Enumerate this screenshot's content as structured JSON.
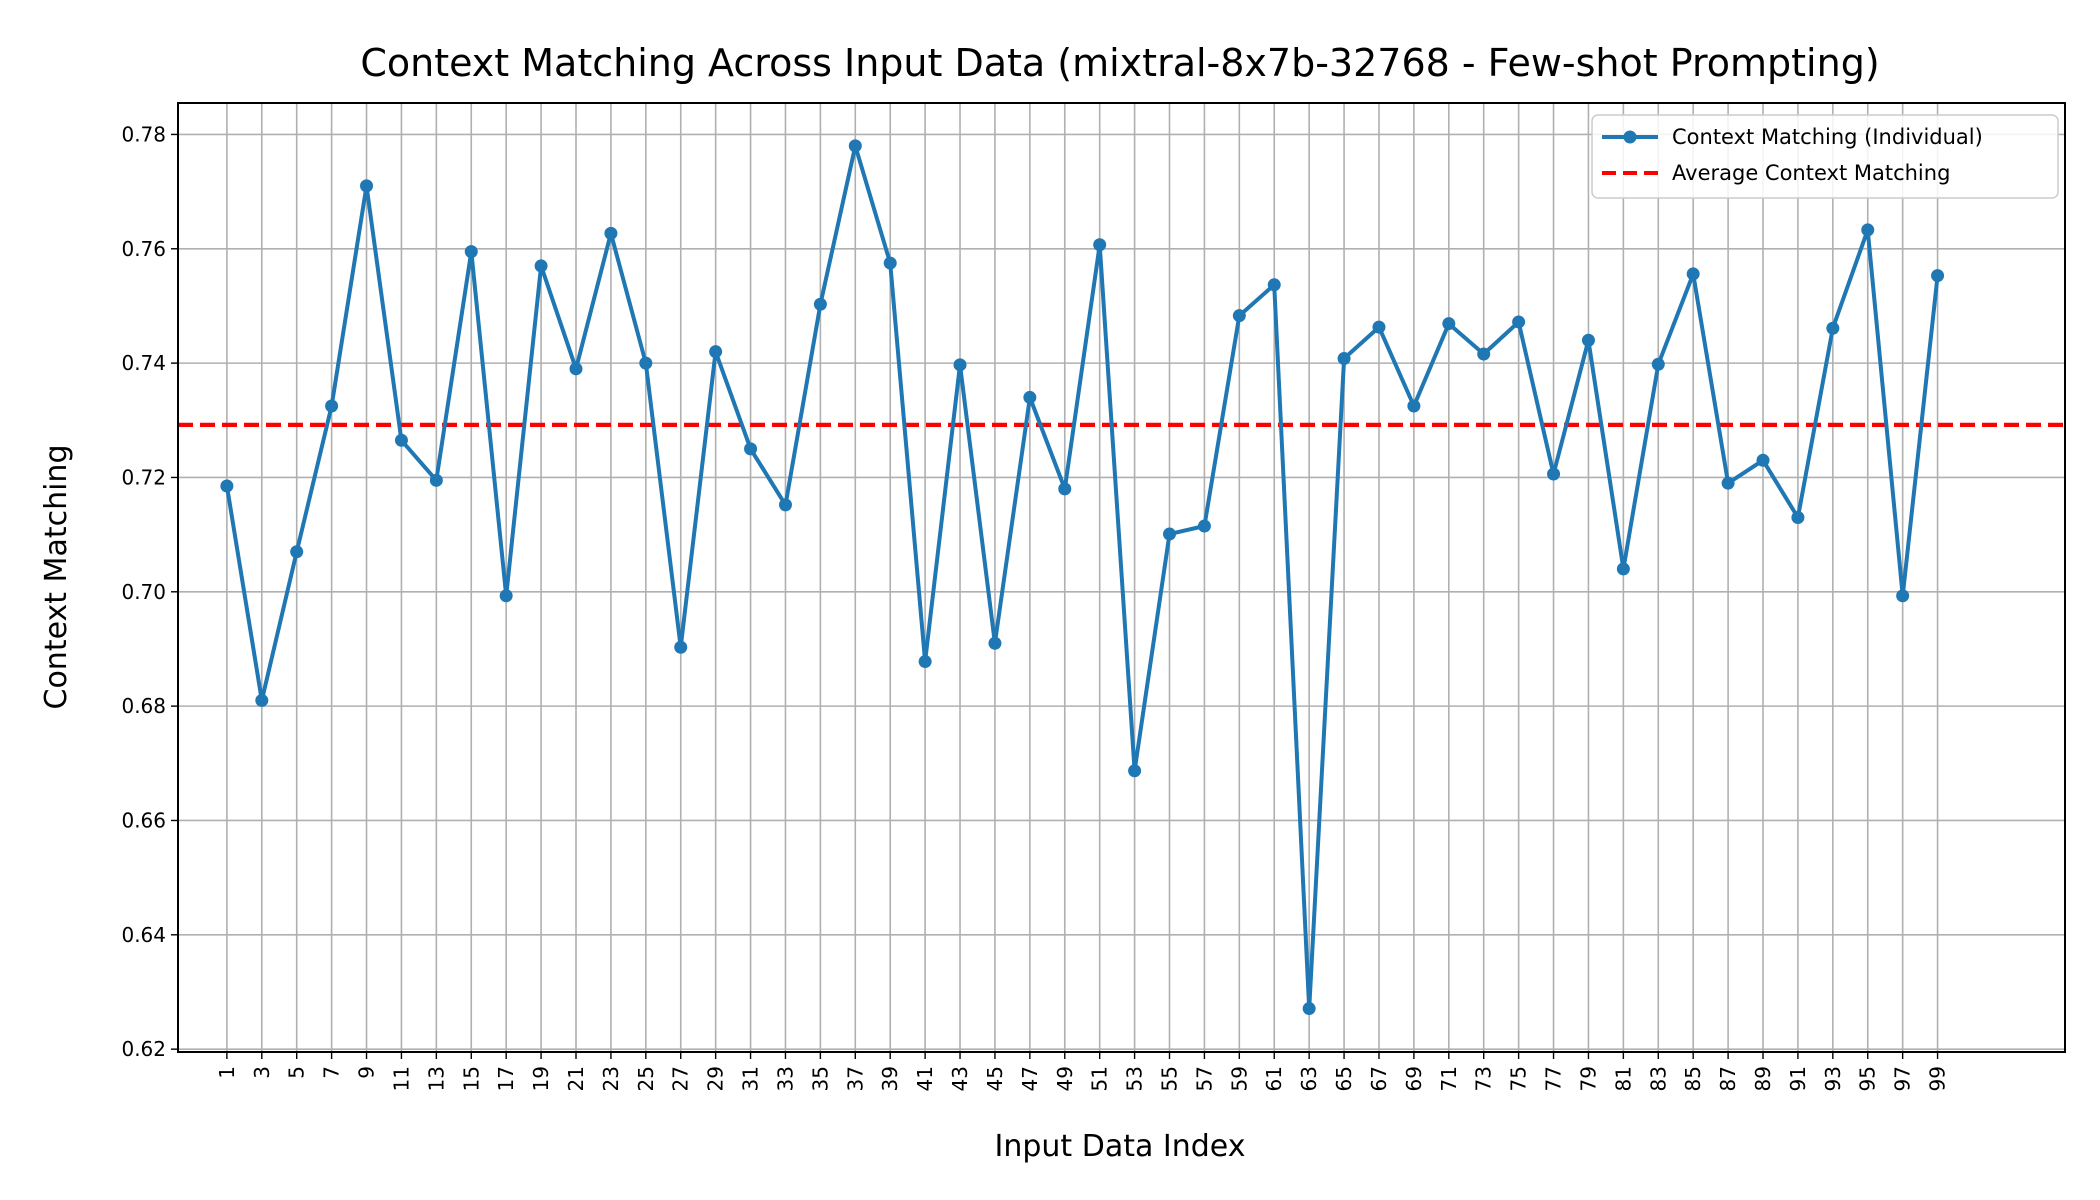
{
  "chart_data": {
    "type": "line",
    "title": "Context Matching Across Input Data (mixtral-8x7b-32768 - Few-shot Prompting)",
    "xlabel": "Input Data Index",
    "ylabel": "Context Matching",
    "xlim": [
      -1.8,
      106.3
    ],
    "ylim": [
      0.6195,
      0.7855
    ],
    "x_ticks": [
      1,
      3,
      5,
      7,
      9,
      11,
      13,
      15,
      17,
      19,
      21,
      23,
      25,
      27,
      29,
      31,
      33,
      35,
      37,
      39,
      41,
      43,
      45,
      47,
      49,
      51,
      53,
      55,
      57,
      59,
      61,
      63,
      65,
      67,
      69,
      71,
      73,
      75,
      77,
      79,
      81,
      83,
      85,
      87,
      89,
      91,
      93,
      95,
      97,
      99
    ],
    "y_ticks": [
      0.62,
      0.64,
      0.66,
      0.68,
      0.7,
      0.72,
      0.74,
      0.76,
      0.78
    ],
    "y_tick_labels": [
      "0.62",
      "0.64",
      "0.66",
      "0.68",
      "0.70",
      "0.72",
      "0.74",
      "0.76",
      "0.78"
    ],
    "grid": true,
    "legend_position": "top-right",
    "series": [
      {
        "name": "Context Matching (Individual)",
        "color": "#1f77b4",
        "style": "solid-with-markers",
        "x": [
          1,
          3,
          5,
          7,
          9,
          11,
          13,
          15,
          17,
          19,
          21,
          23,
          25,
          27,
          29,
          31,
          33,
          35,
          37,
          39,
          41,
          43,
          45,
          47,
          49,
          51,
          53,
          55,
          57,
          59,
          61,
          63,
          65,
          67,
          69,
          71,
          73,
          75,
          77,
          79,
          81,
          83,
          85,
          87,
          89,
          91,
          93,
          95,
          97,
          99
        ],
        "values": [
          0.7185,
          0.681,
          0.707,
          0.7325,
          0.771,
          0.7265,
          0.7195,
          0.7595,
          0.6993,
          0.757,
          0.739,
          0.7627,
          0.74,
          0.6903,
          0.742,
          0.725,
          0.7152,
          0.7503,
          0.778,
          0.7575,
          0.6878,
          0.7397,
          0.691,
          0.734,
          0.718,
          0.7607,
          0.6687,
          0.7101,
          0.7115,
          0.7483,
          0.7537,
          0.6271,
          0.7408,
          0.7463,
          0.7325,
          0.7469,
          0.7416,
          0.7472,
          0.7206,
          0.744,
          0.704,
          0.7398,
          0.7556,
          0.719,
          0.723,
          0.713,
          0.7461,
          0.7633,
          0.6993,
          0.7553
        ]
      },
      {
        "name": "Average Context Matching",
        "color": "#ff0000",
        "style": "dashed-horizontal",
        "value": 0.7292
      }
    ]
  }
}
